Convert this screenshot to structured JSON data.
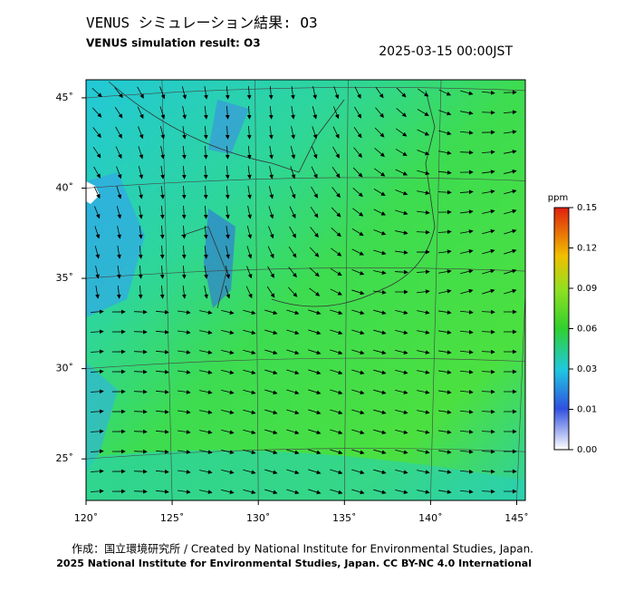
{
  "map": {
    "title": "VENUS シミュレーション結果: O3",
    "subtitle": "VENUS simulation result: O3",
    "timestamp": "2025-03-15 00:00JST",
    "lonlim": [
      120,
      145.5
    ],
    "latlim": [
      22.7,
      46
    ],
    "lonticks": [
      {
        "value": 120,
        "label": "120˚"
      },
      {
        "value": 125,
        "label": "125˚"
      },
      {
        "value": 130,
        "label": "130˚"
      },
      {
        "value": 135,
        "label": "135˚"
      },
      {
        "value": 140,
        "label": "140˚"
      },
      {
        "value": 145,
        "label": "145˚"
      }
    ],
    "latticks": [
      {
        "value": 45,
        "label": "45˚"
      },
      {
        "value": 40,
        "label": "40˚"
      },
      {
        "value": 35,
        "label": "35˚"
      },
      {
        "value": 30,
        "label": "30˚"
      },
      {
        "value": 25,
        "label": "25˚"
      }
    ],
    "colorbar": {
      "unit": "ppm",
      "ticks": [
        0.15,
        0.12,
        0.09,
        0.06,
        0.03,
        0.01,
        {
          "value": 0,
          "label": "0.00"
        }
      ]
    },
    "credit": "作成：国立環境研究所 / Created by National Institute for Environmental Studies, Japan.",
    "copyright": "2025 National Institute for Environmental Studies, Japan. CC BY-NC 4.0 International"
  }
}
